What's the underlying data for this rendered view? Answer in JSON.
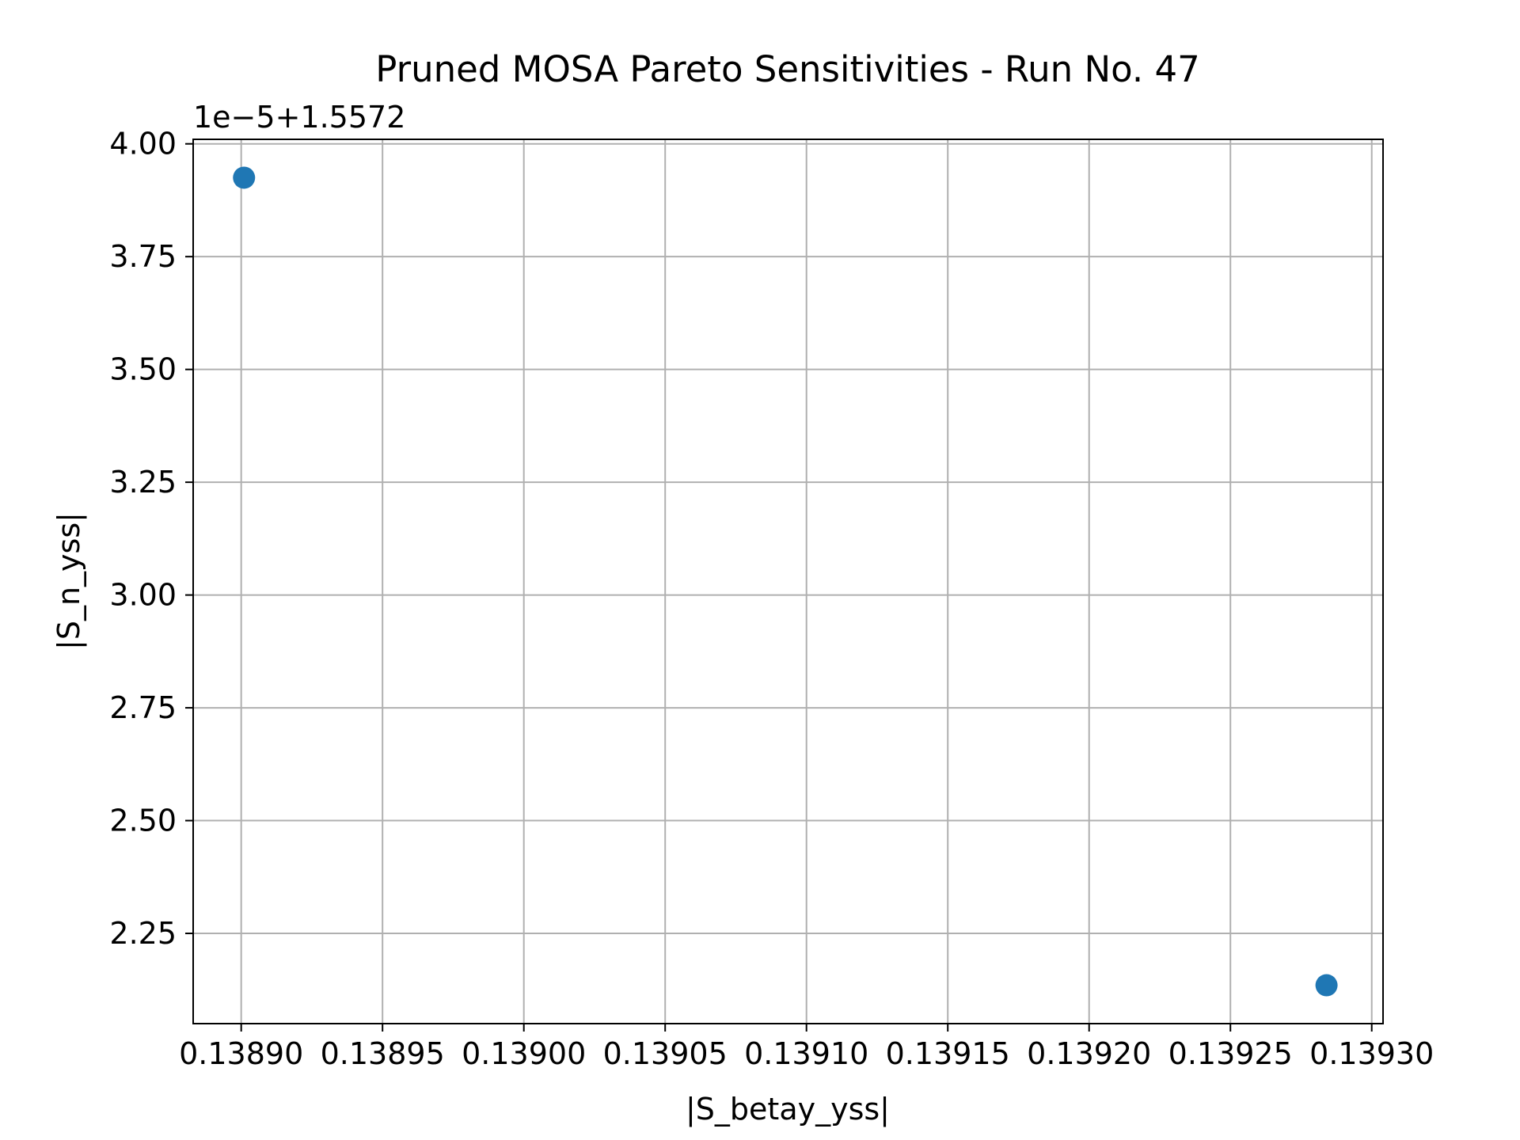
{
  "chart_data": {
    "type": "scatter",
    "title": "Pruned MOSA Pareto Sensitivities - Run No. 47",
    "xlabel": "|S_betay_yss|",
    "ylabel": "|S_n_yss|",
    "y_offset_label": "1e−5+1.5572",
    "xlim": [
      0.138883,
      0.139304
    ],
    "ylim": [
      2.05,
      4.01
    ],
    "grid": true,
    "marker_color": "#1f77b4",
    "x_ticks": [
      0.1389,
      0.13895,
      0.139,
      0.13905,
      0.1391,
      0.13915,
      0.1392,
      0.13925,
      0.1393
    ],
    "x_tick_labels": [
      "0.13890",
      "0.13895",
      "0.13900",
      "0.13905",
      "0.13910",
      "0.13915",
      "0.13920",
      "0.13925",
      "0.13930"
    ],
    "y_ticks": [
      2.25,
      2.5,
      2.75,
      3.0,
      3.25,
      3.5,
      3.75,
      4.0
    ],
    "y_tick_labels": [
      "2.25",
      "2.50",
      "2.75",
      "3.00",
      "3.25",
      "3.50",
      "3.75",
      "4.00"
    ],
    "series": [
      {
        "x": [
          0.138901,
          0.139284
        ],
        "y": [
          3.925,
          2.135
        ]
      }
    ]
  }
}
